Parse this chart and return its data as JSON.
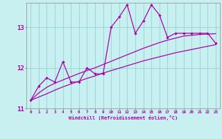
{
  "xlabel": "Windchill (Refroidissement éolien,°C)",
  "bg_color": "#c8f0f0",
  "grid_color": "#a0d8d8",
  "line_color": "#aa00aa",
  "hours": [
    0,
    1,
    2,
    3,
    4,
    5,
    6,
    7,
    8,
    9,
    10,
    11,
    12,
    13,
    14,
    15,
    16,
    17,
    18,
    19,
    20,
    21,
    22,
    23
  ],
  "temp": [
    11.2,
    11.55,
    11.75,
    11.65,
    12.15,
    11.65,
    11.65,
    12.0,
    11.85,
    11.85,
    13.0,
    13.25,
    13.55,
    12.85,
    13.15,
    13.55,
    13.3,
    12.75,
    12.85,
    12.85,
    12.85,
    12.85,
    12.85,
    12.6
  ],
  "line2": [
    11.2,
    11.38,
    11.52,
    11.62,
    11.7,
    11.78,
    11.86,
    11.93,
    12.0,
    12.08,
    12.16,
    12.24,
    12.32,
    12.4,
    12.48,
    12.55,
    12.62,
    12.68,
    12.73,
    12.78,
    12.8,
    12.82,
    12.83,
    12.84
  ],
  "line3": [
    11.2,
    11.28,
    11.36,
    11.45,
    11.53,
    11.6,
    11.67,
    11.74,
    11.8,
    11.87,
    11.93,
    11.99,
    12.05,
    12.11,
    12.17,
    12.22,
    12.27,
    12.32,
    12.37,
    12.41,
    12.45,
    12.49,
    12.53,
    12.57
  ],
  "ylim": [
    11.0,
    13.6
  ],
  "yticks": [
    11,
    12,
    13
  ],
  "xticks": [
    0,
    1,
    2,
    3,
    4,
    5,
    6,
    7,
    8,
    9,
    10,
    11,
    12,
    13,
    14,
    15,
    16,
    17,
    18,
    19,
    20,
    21,
    22,
    23
  ]
}
